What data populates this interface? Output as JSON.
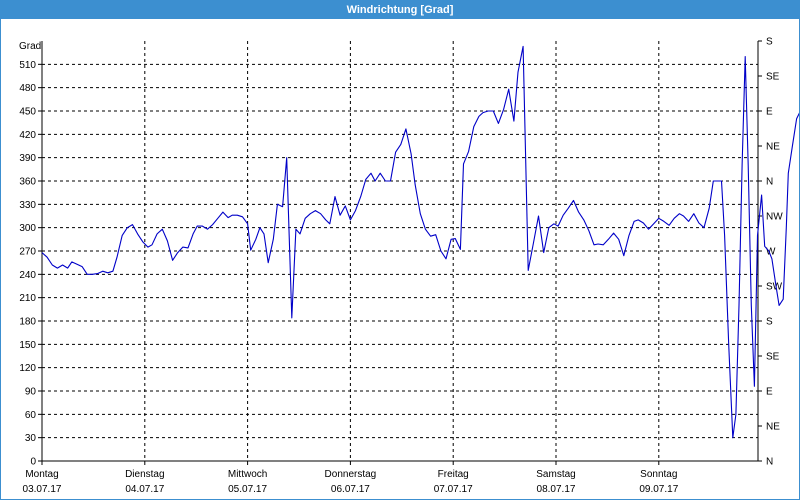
{
  "window": {
    "title": "Windrichtung [Grad]"
  },
  "chart_data": {
    "type": "line",
    "title": "Windrichtung [Grad]",
    "ylabel": "Grad",
    "ylim": [
      0,
      540
    ],
    "y_ticks": [
      0,
      30,
      60,
      90,
      120,
      150,
      180,
      210,
      240,
      270,
      300,
      330,
      360,
      390,
      420,
      450,
      480,
      510
    ],
    "right_axis": {
      "ticks": [
        {
          "value": 0,
          "label": "N"
        },
        {
          "value": 45,
          "label": "NE"
        },
        {
          "value": 90,
          "label": "E"
        },
        {
          "value": 135,
          "label": "SE"
        },
        {
          "value": 180,
          "label": "S"
        },
        {
          "value": 225,
          "label": "SW"
        },
        {
          "value": 270,
          "label": "W"
        },
        {
          "value": 315,
          "label": "NW"
        },
        {
          "value": 360,
          "label": "N"
        },
        {
          "value": 405,
          "label": "NE"
        },
        {
          "value": 450,
          "label": "E"
        },
        {
          "value": 495,
          "label": "SE"
        },
        {
          "value": 540,
          "label": "S"
        }
      ]
    },
    "xlim": [
      0,
      7
    ],
    "x_ticks": [
      {
        "x": 0,
        "day": "Montag",
        "date": "03.07.17"
      },
      {
        "x": 1,
        "day": "Dienstag",
        "date": "04.07.17"
      },
      {
        "x": 2,
        "day": "Mittwoch",
        "date": "05.07.17"
      },
      {
        "x": 3,
        "day": "Donnerstag",
        "date": "06.07.17"
      },
      {
        "x": 4,
        "day": "Freitag",
        "date": "07.07.17"
      },
      {
        "x": 5,
        "day": "Samstag",
        "date": "08.07.17"
      },
      {
        "x": 6,
        "day": "Sonntag",
        "date": "09.07.17"
      }
    ],
    "grid": true,
    "series": [
      {
        "color": "#0000c8",
        "points": [
          [
            0.0,
            268
          ],
          [
            0.05,
            262
          ],
          [
            0.1,
            252
          ],
          [
            0.15,
            248
          ],
          [
            0.2,
            252
          ],
          [
            0.25,
            248
          ],
          [
            0.29,
            256
          ],
          [
            0.34,
            253
          ],
          [
            0.39,
            250
          ],
          [
            0.44,
            240
          ],
          [
            0.49,
            240
          ],
          [
            0.54,
            241
          ],
          [
            0.59,
            244
          ],
          [
            0.64,
            242
          ],
          [
            0.69,
            244
          ],
          [
            0.73,
            262
          ],
          [
            0.78,
            290
          ],
          [
            0.83,
            300
          ],
          [
            0.88,
            304
          ],
          [
            0.93,
            292
          ],
          [
            0.98,
            282
          ],
          [
            1.03,
            275
          ],
          [
            1.07,
            278
          ],
          [
            1.12,
            292
          ],
          [
            1.17,
            298
          ],
          [
            1.22,
            283
          ],
          [
            1.27,
            258
          ],
          [
            1.32,
            268
          ],
          [
            1.37,
            275
          ],
          [
            1.42,
            274
          ],
          [
            1.47,
            292
          ],
          [
            1.51,
            302
          ],
          [
            1.56,
            302
          ],
          [
            1.61,
            298
          ],
          [
            1.66,
            304
          ],
          [
            1.71,
            312
          ],
          [
            1.76,
            320
          ],
          [
            1.81,
            313
          ],
          [
            1.85,
            316
          ],
          [
            1.9,
            316
          ],
          [
            1.95,
            314
          ],
          [
            2.0,
            305
          ],
          [
            2.03,
            271
          ],
          [
            2.08,
            285
          ],
          [
            2.12,
            300
          ],
          [
            2.16,
            292
          ],
          [
            2.2,
            255
          ],
          [
            2.25,
            285
          ],
          [
            2.29,
            330
          ],
          [
            2.34,
            327
          ],
          [
            2.38,
            390
          ],
          [
            2.43,
            184
          ],
          [
            2.47,
            298
          ],
          [
            2.51,
            292
          ],
          [
            2.56,
            312
          ],
          [
            2.61,
            318
          ],
          [
            2.66,
            322
          ],
          [
            2.71,
            318
          ],
          [
            2.76,
            310
          ],
          [
            2.8,
            305
          ],
          [
            2.85,
            340
          ],
          [
            2.9,
            316
          ],
          [
            2.95,
            328
          ],
          [
            3.0,
            310
          ],
          [
            3.05,
            322
          ],
          [
            3.1,
            340
          ],
          [
            3.15,
            362
          ],
          [
            3.2,
            370
          ],
          [
            3.24,
            360
          ],
          [
            3.29,
            370
          ],
          [
            3.34,
            360
          ],
          [
            3.39,
            360
          ],
          [
            3.44,
            397
          ],
          [
            3.49,
            407
          ],
          [
            3.54,
            427
          ],
          [
            3.59,
            395
          ],
          [
            3.63,
            355
          ],
          [
            3.68,
            318
          ],
          [
            3.73,
            298
          ],
          [
            3.78,
            289
          ],
          [
            3.83,
            291
          ],
          [
            3.88,
            270
          ],
          [
            3.93,
            260
          ],
          [
            3.98,
            285
          ],
          [
            4.02,
            286
          ],
          [
            4.07,
            272
          ],
          [
            4.1,
            382
          ],
          [
            4.15,
            398
          ],
          [
            4.2,
            430
          ],
          [
            4.25,
            443
          ],
          [
            4.29,
            448
          ],
          [
            4.34,
            450
          ],
          [
            4.39,
            450
          ],
          [
            4.44,
            434
          ],
          [
            4.49,
            452
          ],
          [
            4.54,
            478
          ],
          [
            4.59,
            437
          ],
          [
            4.63,
            500
          ],
          [
            4.68,
            533
          ],
          [
            4.73,
            245
          ],
          [
            4.78,
            280
          ],
          [
            4.83,
            315
          ],
          [
            4.88,
            268
          ],
          [
            4.93,
            300
          ],
          [
            4.98,
            305
          ],
          [
            5.02,
            302
          ],
          [
            5.07,
            316
          ],
          [
            5.12,
            325
          ],
          [
            5.17,
            335
          ],
          [
            5.22,
            320
          ],
          [
            5.27,
            310
          ],
          [
            5.32,
            296
          ],
          [
            5.37,
            278
          ],
          [
            5.41,
            279
          ],
          [
            5.46,
            278
          ],
          [
            5.51,
            285
          ],
          [
            5.56,
            293
          ],
          [
            5.61,
            285
          ],
          [
            5.66,
            264
          ],
          [
            5.71,
            290
          ],
          [
            5.76,
            308
          ],
          [
            5.8,
            310
          ],
          [
            5.85,
            306
          ],
          [
            5.9,
            298
          ],
          [
            5.95,
            305
          ],
          [
            6.0,
            312
          ],
          [
            6.05,
            308
          ],
          [
            6.1,
            303
          ],
          [
            6.15,
            312
          ],
          [
            6.2,
            318
          ],
          [
            6.24,
            315
          ],
          [
            6.29,
            308
          ],
          [
            6.34,
            318
          ],
          [
            6.39,
            306
          ],
          [
            6.44,
            300
          ],
          [
            6.49,
            325
          ],
          [
            6.53,
            360
          ],
          [
            6.58,
            360
          ],
          [
            6.61,
            360
          ],
          [
            6.64,
            290
          ],
          [
            6.68,
            150
          ],
          [
            6.72,
            30
          ],
          [
            6.75,
            60
          ],
          [
            6.78,
            200
          ],
          [
            6.81,
            380
          ],
          [
            6.84,
            520
          ],
          [
            6.87,
            380
          ],
          [
            6.9,
            200
          ],
          [
            6.93,
            96
          ],
          [
            6.96,
            290
          ],
          [
            7.0,
            342
          ],
          [
            7.03,
            276
          ],
          [
            7.07,
            270
          ],
          [
            7.1,
            260
          ],
          [
            7.14,
            225
          ],
          [
            7.17,
            200
          ],
          [
            7.21,
            208
          ],
          [
            7.24,
            300
          ],
          [
            7.26,
            370
          ],
          [
            7.3,
            405
          ],
          [
            7.34,
            440
          ],
          [
            7.37,
            448
          ]
        ]
      }
    ]
  }
}
